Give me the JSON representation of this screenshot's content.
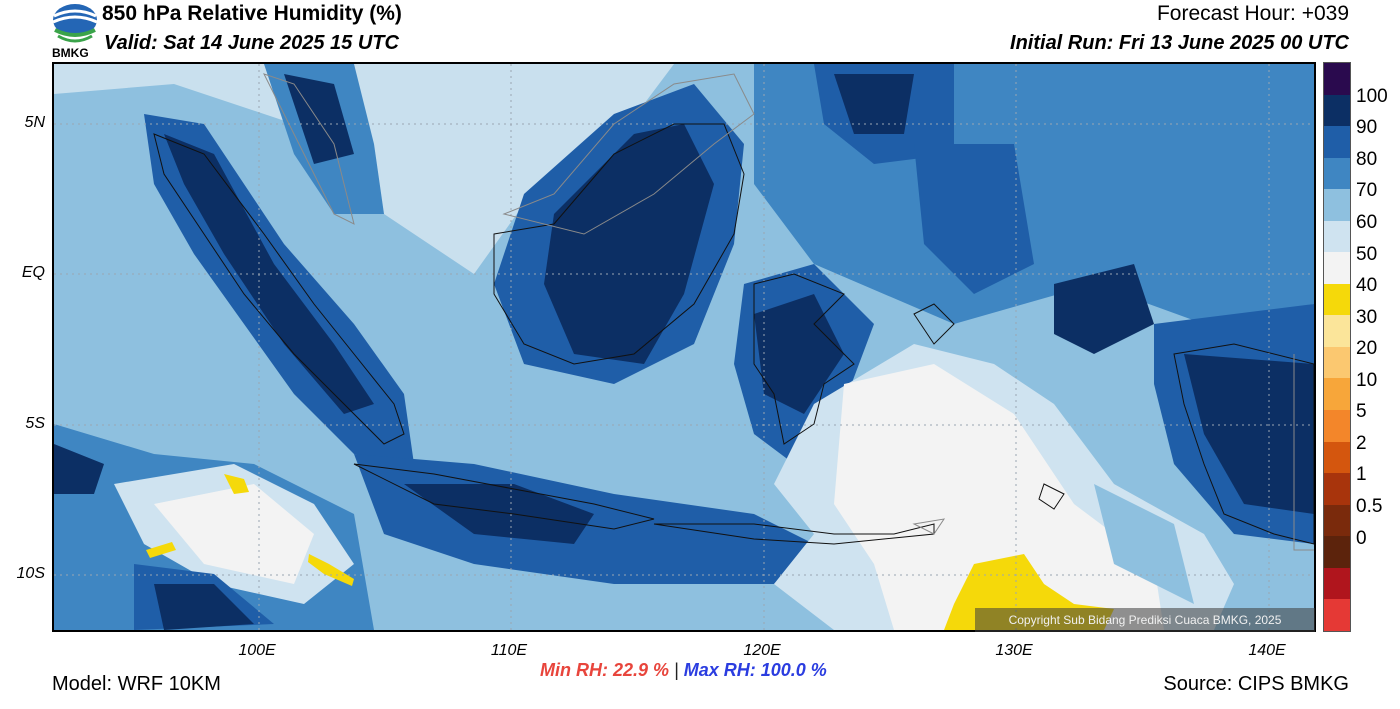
{
  "header": {
    "title": "850 hPa Relative Humidity (%)",
    "valid": "Valid: Sat 14 June 2025 15 UTC",
    "forecast_hour": "Forecast Hour: +039",
    "initial_run": "Initial Run: Fri 13 June 2025 00 UTC",
    "logo_text": "BMKG"
  },
  "map": {
    "lat_labels": [
      "5N",
      "EQ",
      "5S",
      "10S"
    ],
    "lon_labels": [
      "100E",
      "110E",
      "120E",
      "130E",
      "140E"
    ],
    "copyright": "Copyright Sub Bidang Prediksi Cuaca BMKG, 2025"
  },
  "colorbar": {
    "labels": [
      "100",
      "90",
      "80",
      "70",
      "60",
      "50",
      "40",
      "30",
      "20",
      "10",
      "5",
      "2",
      "1",
      "0.5",
      "0"
    ],
    "colors": [
      "#2a0a4e",
      "#0c2f64",
      "#1f5ea8",
      "#3f86c2",
      "#8ec0df",
      "#cfe3f0",
      "#f3f3f3",
      "#f5d90a",
      "#fbe59a",
      "#fbc870",
      "#f7a63a",
      "#f3862a",
      "#d4560e",
      "#a8340c",
      "#7a2a0c",
      "#5c230c",
      "#b0151d",
      "#e53935"
    ]
  },
  "footer": {
    "model": "Model: WRF 10KM",
    "min_rh": "Min RH:  22.9 %",
    "separator": "|",
    "max_rh": "Max RH: 100.0 %",
    "source": "Source: CIPS BMKG"
  }
}
